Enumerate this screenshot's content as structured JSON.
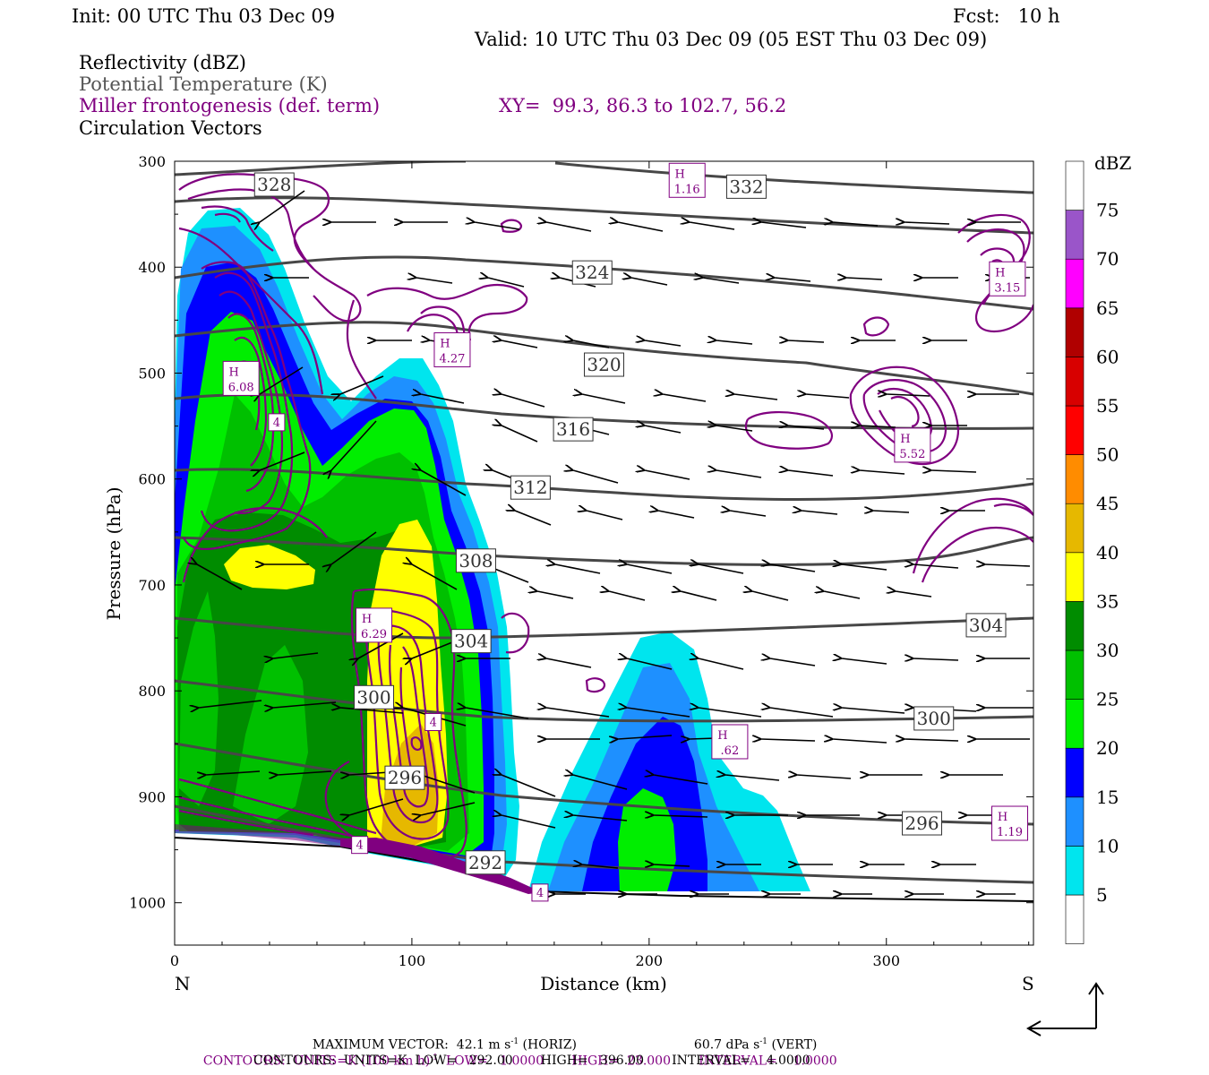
{
  "header": {
    "init": "Init: 00 UTC Thu 03 Dec 09",
    "fcst": "Fcst:   10 h",
    "valid": "Valid: 10 UTC Thu 03 Dec 09 (05 EST Thu 03 Dec 09)",
    "line1": "Reflectivity (dBZ)",
    "line2": "Potential Temperature (K)",
    "line3": "Miller frontogenesis (def. term)",
    "xy": "XY=  99.3, 86.3 to 102.7, 56.2",
    "line4": "Circulation Vectors"
  },
  "footer": {
    "max_vector": "MAXIMUM VECTOR:  42.1 m s",
    "max_vector_horiz": " (HORIZ)",
    "max_vector_vert": "60.7 dPa s",
    "max_vector_vert_unit": " (VERT)",
    "contours1": "CONTOURS:  UNITS=K (100 km h)",
    "contours1_rest": "  LOW=   1.0000       HIGH=  23.000       INTERVAL=    1.0000",
    "contours2": "CONTOURS:  UNITS=K  LOW=   292.00       HIGH=   396.00       INTERVAL=    4.0000",
    "sup": "-1"
  },
  "colors": {
    "theta": "#474747",
    "fronto": "#800080",
    "vectors": "#000000"
  },
  "chart_data": {
    "type": "cross-section",
    "xlabel": "Distance (km)",
    "ylabel": "Pressure (hPa)",
    "xlim": [
      0,
      362
    ],
    "ylim": [
      1040,
      300
    ],
    "x_ticks": [
      0,
      100,
      200,
      300
    ],
    "y_ticks": [
      300,
      400,
      500,
      600,
      700,
      800,
      900,
      1000
    ],
    "left_end": "N",
    "right_end": "S",
    "colorbar": {
      "unit": "dBZ",
      "levels": [
        5,
        10,
        15,
        20,
        25,
        30,
        35,
        40,
        45,
        50,
        55,
        60,
        65,
        70,
        75
      ],
      "colors": [
        "#00e5ee",
        "#1e90ff",
        "#0000ff",
        "#00ee00",
        "#00c000",
        "#008c00",
        "#ffff00",
        "#e6b800",
        "#ff8c00",
        "#ff0000",
        "#d80000",
        "#b00000",
        "#ff00ff",
        "#9a55c9",
        "#ffffff"
      ]
    },
    "theta_labels": [
      {
        "text": "328",
        "x": 42,
        "p": 322
      },
      {
        "text": "332",
        "x": 241,
        "p": 324
      },
      {
        "text": "324",
        "x": 176,
        "p": 405
      },
      {
        "text": "320",
        "x": 181,
        "p": 492
      },
      {
        "text": "316",
        "x": 168,
        "p": 553
      },
      {
        "text": "312",
        "x": 150,
        "p": 608
      },
      {
        "text": "308",
        "x": 127,
        "p": 677
      },
      {
        "text": "304",
        "x": 342,
        "p": 738
      },
      {
        "text": "304",
        "x": 125,
        "p": 753
      },
      {
        "text": "300",
        "x": 84,
        "p": 806
      },
      {
        "text": "300",
        "x": 320,
        "p": 826
      },
      {
        "text": "296",
        "x": 97,
        "p": 882
      },
      {
        "text": "296",
        "x": 315,
        "p": 925
      },
      {
        "text": "292",
        "x": 131,
        "p": 962
      }
    ],
    "fronto_labels": [
      {
        "text": "4",
        "x": 43,
        "p": 546
      },
      {
        "text": "4",
        "x": 109,
        "p": 829
      },
      {
        "text": "4",
        "x": 78,
        "p": 945
      },
      {
        "text": "4",
        "x": 154,
        "p": 990
      }
    ],
    "highs": [
      {
        "label": "H",
        "value": "1.16",
        "x": 216,
        "p": 318
      },
      {
        "label": "H",
        "value": "3.15",
        "x": 351,
        "p": 411
      },
      {
        "label": "H",
        "value": "4.27",
        "x": 117,
        "p": 478
      },
      {
        "label": "H",
        "value": "6.08",
        "x": 28,
        "p": 505
      },
      {
        "label": "H",
        "value": "5.52",
        "x": 311,
        "p": 568
      },
      {
        "label": "H",
        "value": "6.29",
        "x": 84,
        "p": 738
      },
      {
        "label": "H",
        "value": ".62",
        "x": 234,
        "p": 848
      },
      {
        "label": "H",
        "value": "1.19",
        "x": 352,
        "p": 925
      }
    ]
  }
}
